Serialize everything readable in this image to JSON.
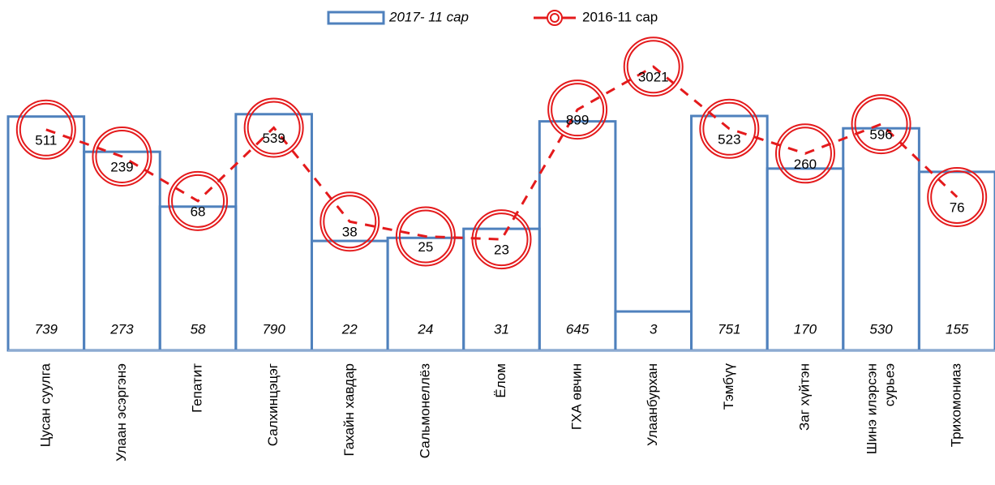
{
  "chart_data": {
    "type": "bar",
    "categories": [
      "Цусан суулга",
      "Улаан эсэргэнэ",
      "Гепатит",
      "Салхинцэцэг",
      "Гахайн хавдар",
      "Сальмонеллёз",
      "Ёлом",
      "ГХА өвчин",
      "Улаанбурхан",
      "Тэмбүү",
      "Заг хүйтэн",
      "Шинэ илэрсэн сурьеэ",
      "Трихомониаз"
    ],
    "series": [
      {
        "name": "2017- 11 сар",
        "type": "bar",
        "color": "#4f81bd",
        "values": [
          739,
          273,
          58,
          790,
          22,
          24,
          31,
          645,
          3,
          751,
          170,
          530,
          155
        ]
      },
      {
        "name": "2016-11 сар",
        "type": "line",
        "color": "#e41a1c",
        "values": [
          511,
          239,
          68,
          539,
          38,
          25,
          23,
          899,
          3021,
          523,
          260,
          596,
          76
        ]
      }
    ],
    "ylim": [
      1,
      10000
    ],
    "log_scale": true,
    "grid": false,
    "legend": "top"
  }
}
